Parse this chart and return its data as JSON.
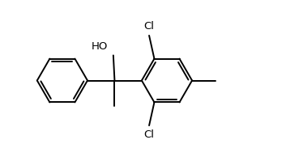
{
  "background_color": "#ffffff",
  "line_color": "#000000",
  "text_color": "#000000",
  "line_width": 1.4,
  "font_size": 9.5,
  "figsize": [
    3.53,
    1.99
  ],
  "dpi": 100,
  "xlim": [
    -1.0,
    1.05
  ],
  "ylim": [
    -0.62,
    0.62
  ]
}
